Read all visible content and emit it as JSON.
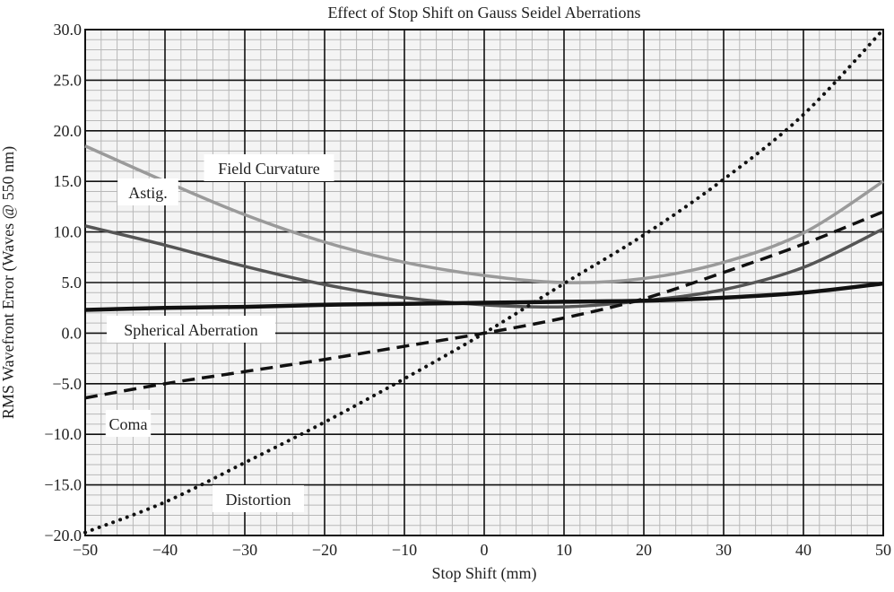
{
  "chart_data": {
    "type": "line",
    "title": "Effect of Stop Shift on Gauss Seidel Aberrations",
    "xlabel": "Stop Shift (mm)",
    "ylabel": "RMS Wavefront Error  (Waves @ 550 nm)",
    "xlim": [
      -50,
      50
    ],
    "ylim": [
      -20,
      30
    ],
    "grid": true,
    "x_ticks": [
      "−50",
      "−40",
      "−30",
      "−20",
      "−10",
      "0",
      "10",
      "20",
      "30",
      "40",
      "50"
    ],
    "x_tick_values": [
      -50,
      -40,
      -30,
      -20,
      -10,
      0,
      10,
      20,
      30,
      40,
      50
    ],
    "y_ticks": [
      "30.0",
      "25.0",
      "20.0",
      "15.0",
      "10.0",
      "5.0",
      "0.0",
      "−5.0",
      "−10.0",
      "−15.0",
      "−20.0"
    ],
    "y_tick_values": [
      30,
      25,
      20,
      15,
      10,
      5,
      0,
      -5,
      -10,
      -15,
      -20
    ],
    "x": [
      -50,
      -40,
      -30,
      -20,
      -10,
      0,
      10,
      20,
      30,
      40,
      50
    ],
    "series": [
      {
        "name": "Field Curvature",
        "style": "solid",
        "color": "#9a9a9a",
        "values": [
          18.5,
          15.0,
          11.7,
          9.0,
          7.0,
          5.7,
          5.0,
          5.4,
          7.0,
          9.9,
          15.0
        ]
      },
      {
        "name": "Astig.",
        "style": "solid",
        "color": "#555555",
        "values": [
          10.6,
          8.7,
          6.6,
          4.8,
          3.5,
          2.8,
          2.6,
          3.2,
          4.3,
          6.5,
          10.3
        ]
      },
      {
        "name": "Spherical Aberration",
        "style": "solid-thick",
        "color": "#111111",
        "values": [
          2.3,
          2.5,
          2.6,
          2.8,
          2.9,
          3.0,
          3.1,
          3.2,
          3.5,
          4.0,
          4.9
        ]
      },
      {
        "name": "Coma",
        "style": "dashed",
        "color": "#111111",
        "values": [
          -6.4,
          -5.0,
          -3.8,
          -2.6,
          -1.3,
          0.0,
          1.5,
          3.4,
          6.0,
          8.8,
          12.0
        ]
      },
      {
        "name": "Distortion",
        "style": "dotted",
        "color": "#111111",
        "values": [
          -19.7,
          -16.7,
          -12.8,
          -8.8,
          -4.5,
          0.0,
          4.9,
          9.7,
          15.2,
          21.6,
          30.0
        ]
      }
    ],
    "annotations": [
      {
        "text": "Field Curvature",
        "series": "Field Curvature"
      },
      {
        "text": "Astig.",
        "series": "Astig."
      },
      {
        "text": "Spherical Aberration",
        "series": "Spherical Aberration"
      },
      {
        "text": "Coma",
        "series": "Coma"
      },
      {
        "text": "Distortion",
        "series": "Distortion"
      }
    ]
  }
}
